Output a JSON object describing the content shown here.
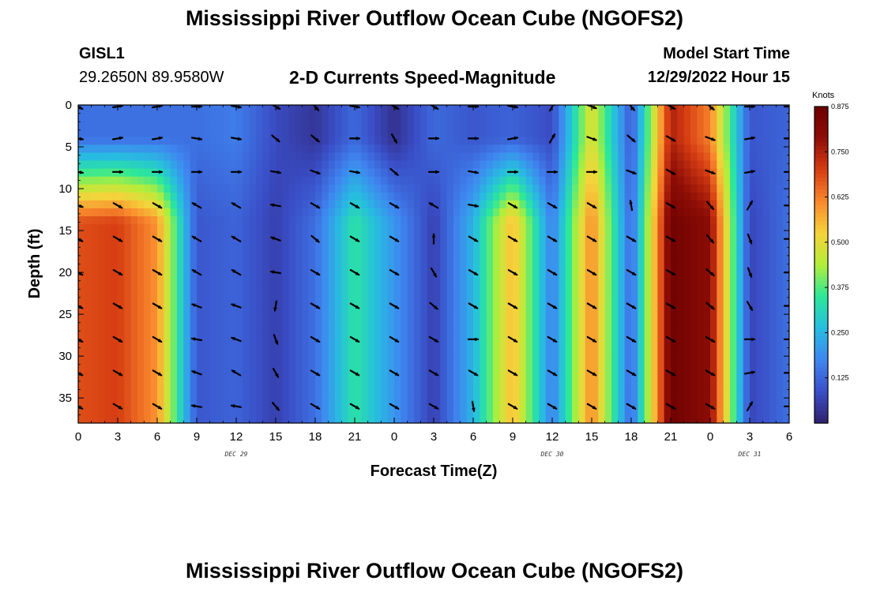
{
  "header": {
    "title": "Mississippi River Outflow Ocean Cube (NGOFS2)",
    "station": "GISL1",
    "coordinates": "29.2650N  89.9580W",
    "subtitle": "2-D Currents Speed-Magnitude",
    "model_start_label": "Model Start Time",
    "model_start_value": "12/29/2022 Hour 15"
  },
  "footer": {
    "title": "Mississippi River Outflow Ocean Cube (NGOFS2)"
  },
  "chart_data": {
    "type": "heatmap",
    "xlabel": "Forecast Time(Z)",
    "ylabel": "Depth (ft)",
    "x_tick_labels": [
      "0",
      "3",
      "6",
      "9",
      "12",
      "15",
      "18",
      "21",
      "0",
      "3",
      "6",
      "9",
      "12",
      "15",
      "18",
      "21",
      "0",
      "3",
      "6"
    ],
    "x_hours": [
      0,
      3,
      6,
      9,
      12,
      15,
      18,
      21,
      24,
      27,
      30,
      33,
      36,
      39,
      42,
      45,
      48,
      51,
      54
    ],
    "date_labels": [
      {
        "text": "DEC 29",
        "hour": 12
      },
      {
        "text": "DEC 30",
        "hour": 36
      },
      {
        "text": "DEC 31",
        "hour": 51
      }
    ],
    "y_ticks": [
      0,
      5,
      10,
      15,
      20,
      25,
      30,
      35
    ],
    "xlim": [
      0,
      54
    ],
    "ylim": [
      38,
      0
    ],
    "colorbar": {
      "unit": "Knots",
      "min": 0,
      "max": 0.875,
      "tick_labels": [
        "0.875",
        "0.750",
        "0.625",
        "0.500",
        "0.375",
        "0.250",
        "0.125"
      ],
      "tick_values": [
        0.875,
        0.75,
        0.625,
        0.5,
        0.375,
        0.25,
        0.125
      ],
      "colors": [
        "#30206e",
        "#3a4fc8",
        "#3f86f0",
        "#27bde0",
        "#2be89a",
        "#b3ee3a",
        "#f5d33b",
        "#f9882d",
        "#d63d13",
        "#8f0e07",
        "#6b0000"
      ]
    },
    "speed_columns": [
      {
        "hour": 0,
        "top": 0.14,
        "bottom": 0.68
      },
      {
        "hour": 3,
        "top": 0.14,
        "bottom": 0.7
      },
      {
        "hour": 6,
        "top": 0.14,
        "bottom": 0.6
      },
      {
        "hour": 9,
        "top": 0.14,
        "bottom": 0.1
      },
      {
        "hour": 12,
        "top": 0.16,
        "bottom": 0.12
      },
      {
        "hour": 15,
        "top": 0.08,
        "bottom": 0.06
      },
      {
        "hour": 18,
        "top": 0.04,
        "bottom": 0.14
      },
      {
        "hour": 21,
        "top": 0.13,
        "bottom": 0.34
      },
      {
        "hour": 24,
        "top": 0.03,
        "bottom": 0.2
      },
      {
        "hour": 27,
        "top": 0.13,
        "bottom": 0.06
      },
      {
        "hour": 30,
        "top": 0.1,
        "bottom": 0.25
      },
      {
        "hour": 33,
        "top": 0.12,
        "bottom": 0.56
      },
      {
        "hour": 36,
        "top": 0.08,
        "bottom": 0.16
      },
      {
        "hour": 39,
        "top": 0.5,
        "bottom": 0.62
      },
      {
        "hour": 42,
        "top": 0.1,
        "bottom": 0.12
      },
      {
        "hour": 45,
        "top": 0.75,
        "bottom": 0.86
      },
      {
        "hour": 48,
        "top": 0.62,
        "bottom": 0.8
      },
      {
        "hour": 51,
        "top": 0.1,
        "bottom": 0.07
      },
      {
        "hour": 54,
        "top": 0.12,
        "bottom": 0.14
      }
    ],
    "vector_depths": [
      0,
      4,
      8,
      12,
      16,
      20,
      24,
      28,
      32,
      36
    ],
    "vector_directions_deg": [
      [
        120,
        100,
        100,
        110,
        120,
        120,
        120,
        120,
        120,
        120
      ],
      [
        80,
        80,
        90,
        120,
        120,
        120,
        120,
        120,
        120,
        120
      ],
      [
        80,
        80,
        90,
        120,
        120,
        120,
        120,
        120,
        120,
        120
      ],
      [
        90,
        100,
        90,
        300,
        300,
        300,
        290,
        280,
        290,
        280
      ],
      [
        100,
        100,
        90,
        300,
        300,
        300,
        290,
        290,
        300,
        280
      ],
      [
        120,
        130,
        100,
        280,
        290,
        280,
        190,
        160,
        150,
        140
      ],
      [
        140,
        130,
        110,
        120,
        130,
        120,
        120,
        120,
        120,
        120
      ],
      [
        100,
        90,
        100,
        120,
        120,
        120,
        120,
        120,
        120,
        120
      ],
      [
        120,
        150,
        130,
        120,
        120,
        120,
        120,
        120,
        120,
        120
      ],
      [
        120,
        90,
        90,
        300,
        360,
        150,
        130,
        120,
        120,
        120
      ],
      [
        90,
        90,
        100,
        100,
        120,
        120,
        120,
        90,
        120,
        170
      ],
      [
        100,
        80,
        90,
        120,
        120,
        120,
        120,
        120,
        120,
        120
      ],
      [
        30,
        30,
        90,
        120,
        120,
        120,
        120,
        120,
        120,
        120
      ],
      [
        110,
        110,
        90,
        120,
        120,
        120,
        120,
        120,
        120,
        120
      ],
      [
        140,
        130,
        110,
        350,
        120,
        120,
        120,
        120,
        120,
        120
      ],
      [
        120,
        120,
        120,
        120,
        120,
        120,
        120,
        120,
        120,
        120
      ],
      [
        130,
        110,
        110,
        140,
        140,
        130,
        130,
        120,
        120,
        120
      ],
      [
        90,
        80,
        80,
        30,
        160,
        160,
        150,
        90,
        80,
        30
      ],
      [
        90,
        90,
        90,
        90,
        90,
        90,
        90,
        90,
        90,
        90
      ]
    ]
  }
}
